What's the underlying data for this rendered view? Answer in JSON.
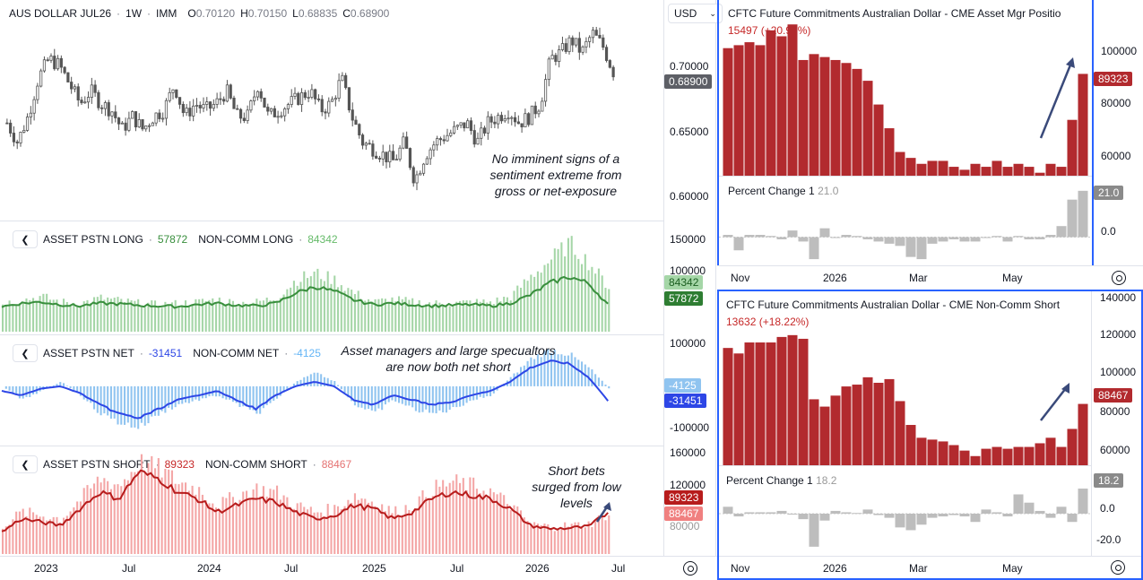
{
  "main": {
    "symbol": "AUS DOLLAR JUL26",
    "interval": "1W",
    "exchange": "IMM",
    "o_label": "O",
    "o_value": "0.70120",
    "h_label": "H",
    "h_value": "0.70150",
    "l_label": "L",
    "l_value": "0.68835",
    "c_label": "C",
    "c_value": "0.68900",
    "currency": "USD",
    "price_ticks": [
      "0.70000",
      "0.65000",
      "0.60000"
    ],
    "last_price": "0.68900",
    "annotation": "No imminent signs of a sentiment extreme from gross or net-exposure"
  },
  "long_pane": {
    "title1": "ASSET PSTN LONG",
    "value1": "57872",
    "title2": "NON-COMM LONG",
    "value2": "84342",
    "ticks": [
      "150000",
      "100000"
    ],
    "tag1": "84342",
    "tag2": "57872"
  },
  "net_pane": {
    "title1": "ASSET PSTN NET",
    "value1": "-31451",
    "title2": "NON-COMM NET",
    "value2": "-4125",
    "ticks": [
      "100000",
      "-100000"
    ],
    "tag1": "-4125",
    "tag2": "-31451",
    "annotation": "Asset managers and large specualtors are now both net short"
  },
  "short_pane": {
    "title1": "ASSET PSTN SHORT",
    "value1": "89323",
    "title2": "NON-COMM SHORT",
    "value2": "88467",
    "ticks": [
      "160000",
      "120000",
      "80000"
    ],
    "tag1": "89323",
    "tag2": "88467",
    "annotation": "Short bets surged from low levels"
  },
  "left_time_axis": [
    "2023",
    "Jul",
    "2024",
    "Jul",
    "2025",
    "Jul",
    "2026",
    "Jul"
  ],
  "right_top": {
    "title": "CFTC Future Commitments Australian Dollar - CME Asset Mgr Positio",
    "sub": "15497 (+20.99%)",
    "ticks": [
      "100000",
      "80000",
      "60000"
    ],
    "last_tag": "89323",
    "pct_label": "Percent Change 1",
    "pct_value": "21.0",
    "pct_ticks": [
      "0.0"
    ],
    "pct_tag": "21.0",
    "axis": [
      "Nov",
      "2026",
      "Mar",
      "May"
    ]
  },
  "right_bottom": {
    "title": "CFTC Future Commitments Australian Dollar - CME Non-Comm Short",
    "sub": "13632 (+18.22%)",
    "ticks": [
      "140000",
      "120000",
      "100000",
      "80000",
      "60000"
    ],
    "last_tag": "88467",
    "pct_label": "Percent Change 1",
    "pct_value": "18.2",
    "pct_ticks": [
      "0.0",
      "-20.0"
    ],
    "pct_tag": "18.2",
    "axis": [
      "Nov",
      "2026",
      "Mar",
      "May"
    ]
  },
  "colors": {
    "candle": "#555555",
    "long_asset": "#388e3c",
    "long_noncomm": "#a5d6a7",
    "net_asset": "#2d46e6",
    "net_noncomm": "#90c4f0",
    "short_asset": "#b71c1c",
    "short_noncomm": "#f4a6a6",
    "bar_red": "#b22a2e",
    "bar_gray": "#bdbdbd",
    "frame": "#2962ff"
  },
  "chart_data": [
    {
      "type": "line",
      "title": "AUS DOLLAR JUL26",
      "x_range": [
        "2022-10",
        "2026-07"
      ],
      "ylim": [
        0.59,
        0.73
      ],
      "series": [
        {
          "name": "AUS DOLLAR JUL26",
          "values": [
            0.655,
            0.64,
            0.66,
            0.69,
            0.705,
            0.7,
            0.685,
            0.67,
            0.68,
            0.67,
            0.665,
            0.65,
            0.66,
            0.65,
            0.66,
            0.665,
            0.685,
            0.66,
            0.67,
            0.665,
            0.67,
            0.68,
            0.66,
            0.66,
            0.685,
            0.66,
            0.665,
            0.67,
            0.675,
            0.68,
            0.665,
            0.67,
            0.69,
            0.66,
            0.64,
            0.635,
            0.63,
            0.625,
            0.64,
            0.61,
            0.63,
            0.64,
            0.645,
            0.65,
            0.655,
            0.64,
            0.655,
            0.66,
            0.665,
            0.655,
            0.66,
            0.67,
            0.705,
            0.71,
            0.72,
            0.71,
            0.725,
            0.715,
            0.695
          ]
        }
      ]
    },
    {
      "type": "bar",
      "title": "ASSET PSTN LONG / NON-COMM LONG",
      "series": [
        {
          "name": "ASSET PSTN LONG",
          "values": [
            55000,
            60000,
            62000,
            58000,
            56000,
            60000,
            59000,
            57000,
            56000,
            55000,
            58000,
            60000,
            57000,
            56000,
            60000,
            75000,
            85000,
            78000,
            65000,
            58000,
            60000,
            58000,
            56000,
            57000,
            58000,
            56000,
            60000,
            72000,
            90000,
            100000,
            90000,
            57872
          ]
        },
        {
          "name": "NON-COMM LONG",
          "values": [
            60000,
            65000,
            70000,
            62000,
            60000,
            68000,
            64000,
            60000,
            58000,
            60000,
            62000,
            66000,
            60000,
            62000,
            68000,
            95000,
            105000,
            95000,
            75000,
            62000,
            66000,
            62000,
            60000,
            60000,
            62000,
            62000,
            70000,
            100000,
            125000,
            150000,
            120000,
            84342
          ]
        }
      ]
    },
    {
      "type": "bar",
      "title": "ASSET PSTN NET / NON-COMM NET",
      "series": [
        {
          "name": "ASSET PSTN NET",
          "values": [
            -10000,
            -20000,
            -5000,
            0,
            -15000,
            -40000,
            -60000,
            -70000,
            -50000,
            -30000,
            -20000,
            -10000,
            -30000,
            -50000,
            -20000,
            0,
            10000,
            0,
            -30000,
            -40000,
            -20000,
            -30000,
            -40000,
            -35000,
            -20000,
            -10000,
            10000,
            40000,
            55000,
            50000,
            20000,
            -31451
          ]
        },
        {
          "name": "NON-COMM NET",
          "values": [
            0,
            -30000,
            -10000,
            10000,
            -20000,
            -60000,
            -80000,
            -90000,
            -60000,
            -40000,
            -30000,
            -20000,
            -40000,
            -60000,
            -30000,
            10000,
            30000,
            10000,
            -40000,
            -60000,
            -30000,
            -50000,
            -60000,
            -50000,
            -30000,
            -20000,
            20000,
            60000,
            80000,
            70000,
            40000,
            -4125
          ]
        }
      ]
    },
    {
      "type": "bar",
      "title": "ASSET PSTN SHORT / NON-COMM SHORT",
      "series": [
        {
          "name": "ASSET PSTN SHORT",
          "values": [
            60000,
            80000,
            75000,
            70000,
            95000,
            120000,
            110000,
            150000,
            140000,
            120000,
            110000,
            90000,
            100000,
            110000,
            105000,
            90000,
            80000,
            85000,
            100000,
            95000,
            80000,
            90000,
            110000,
            120000,
            115000,
            110000,
            95000,
            70000,
            65000,
            66000,
            68000,
            89323
          ]
        },
        {
          "name": "NON-COMM SHORT",
          "values": [
            70000,
            90000,
            85000,
            80000,
            110000,
            140000,
            130000,
            165000,
            155000,
            135000,
            125000,
            100000,
            115000,
            125000,
            120000,
            100000,
            90000,
            95000,
            115000,
            105000,
            90000,
            100000,
            125000,
            135000,
            130000,
            120000,
            100000,
            72000,
            68000,
            70000,
            72000,
            88467
          ]
        }
      ]
    },
    {
      "type": "bar",
      "title": "CFTC Future Commitments Australian Dollar - CME Asset Mgr Positio",
      "ylim": [
        55000,
        110000
      ],
      "values": [
        98000,
        99000,
        100000,
        99000,
        104000,
        102000,
        106000,
        94000,
        96000,
        95000,
        94000,
        93000,
        91000,
        87000,
        79000,
        71000,
        63000,
        61000,
        59000,
        60000,
        60000,
        58000,
        57000,
        59000,
        58000,
        60000,
        58000,
        59000,
        58000,
        56000,
        59000,
        58000,
        73826,
        89323
      ]
    },
    {
      "type": "bar",
      "title": "Percent Change 1 (Asset Mgr)",
      "ylim": [
        -12,
        25
      ],
      "values": [
        1,
        -6,
        1,
        1,
        0.5,
        -1,
        3,
        -2,
        -10,
        4,
        0,
        1,
        0.5,
        -1,
        -2,
        -3,
        -4,
        -9,
        -10,
        -3,
        -2,
        -1,
        -2,
        -2,
        0,
        0.5,
        -2,
        0.5,
        -1,
        -1,
        1,
        5,
        17,
        21.0
      ]
    },
    {
      "type": "bar",
      "title": "CFTC Future Commitments Australian Dollar - CME Non-Comm Short",
      "ylim": [
        55000,
        145000
      ],
      "values": [
        119000,
        116000,
        122000,
        122000,
        122000,
        125000,
        126000,
        124000,
        91000,
        87000,
        93000,
        98000,
        99000,
        103000,
        100000,
        102000,
        90000,
        77000,
        70000,
        69000,
        68000,
        66000,
        63000,
        60000,
        64000,
        65000,
        64000,
        65000,
        65000,
        67000,
        70000,
        65000,
        74835,
        88467
      ]
    },
    {
      "type": "bar",
      "title": "Percent Change 1 (Non-Comm Short)",
      "ylim": [
        -28,
        28
      ],
      "values": [
        5,
        -2,
        1,
        1,
        1,
        2,
        0,
        -4,
        -24,
        -5,
        2,
        1,
        0.5,
        3,
        -1,
        -3,
        -10,
        -12,
        -8,
        -3,
        -2,
        -1,
        -2,
        -6,
        3,
        1,
        -2,
        14,
        8,
        2,
        -3,
        5,
        -6,
        18.2
      ]
    }
  ]
}
